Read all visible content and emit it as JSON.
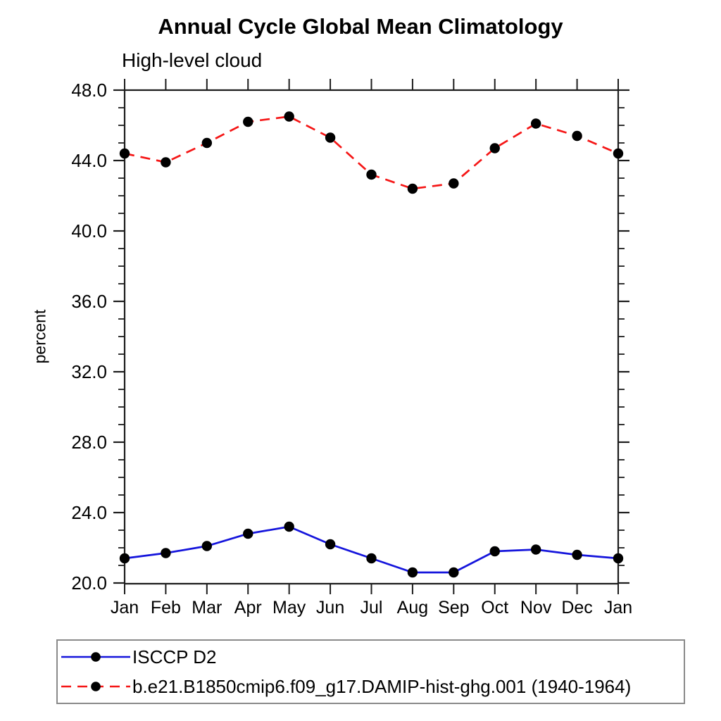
{
  "title": "Annual Cycle Global Mean Climatology",
  "subtitle": "High-level cloud",
  "ylabel": "percent",
  "chart_data": {
    "type": "line",
    "categories": [
      "Jan",
      "Feb",
      "Mar",
      "Apr",
      "May",
      "Jun",
      "Jul",
      "Aug",
      "Sep",
      "Oct",
      "Nov",
      "Dec",
      "Jan"
    ],
    "series": [
      {
        "name": "ISCCP D2",
        "line_style": "solid",
        "color": "#1515dc",
        "marker": "circle",
        "marker_color": "#000000",
        "values": [
          21.4,
          21.7,
          22.1,
          22.8,
          23.2,
          22.2,
          21.4,
          20.6,
          20.6,
          21.8,
          21.9,
          21.6,
          21.4
        ]
      },
      {
        "name": "b.e21.B1850cmip6.f09_g17.DAMIP-hist-ghg.001 (1940-1964)",
        "line_style": "dashed",
        "color": "#f51616",
        "marker": "circle",
        "marker_color": "#000000",
        "values": [
          44.4,
          43.9,
          45.0,
          46.2,
          46.5,
          45.3,
          43.2,
          42.4,
          42.7,
          44.7,
          46.1,
          45.4,
          44.4
        ]
      }
    ],
    "ylim": [
      20.0,
      48.0
    ],
    "y_major_tick_step": 4,
    "y_minor_tick_step": 1,
    "y_tick_labels": [
      "20.0",
      "24.0",
      "28.0",
      "32.0",
      "36.0",
      "40.0",
      "44.0",
      "48.0"
    ],
    "grid": false,
    "legend_position": "bottom-left",
    "axis_color": "#1c1c1c"
  }
}
